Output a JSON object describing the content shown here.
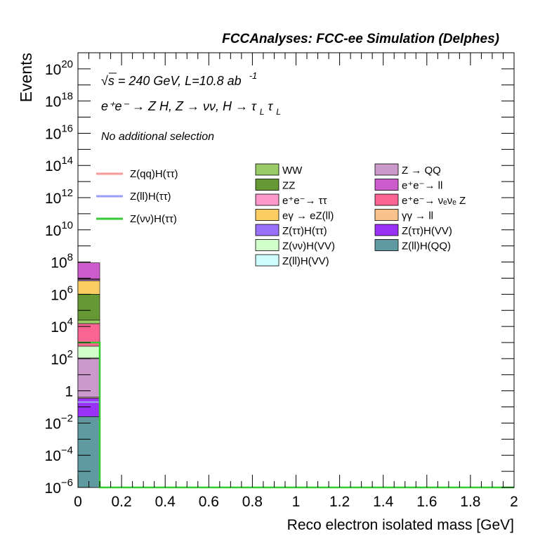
{
  "chart_data": {
    "type": "bar",
    "title": "FCCAnalyses: FCC-ee Simulation (Delphes)",
    "xlabel": "Reco electron isolated mass [GeV]",
    "ylabel": "Events",
    "xlim": [
      0,
      2
    ],
    "ylim": [
      1e-06,
      1e+21
    ],
    "yscale": "log",
    "grid": false,
    "x_ticks": [
      "0",
      "0.2",
      "0.4",
      "0.6",
      "0.8",
      "1",
      "1.2",
      "1.4",
      "1.6",
      "1.8",
      "2"
    ],
    "y_ticks": [
      {
        "base": "10",
        "exp": "−6",
        "value": 1e-06
      },
      {
        "base": "10",
        "exp": "−4",
        "value": 0.0001
      },
      {
        "base": "10",
        "exp": "−2",
        "value": 0.01
      },
      {
        "base": "1",
        "exp": "",
        "value": 1
      },
      {
        "base": "10",
        "exp": "2",
        "value": 100.0
      },
      {
        "base": "10",
        "exp": "4",
        "value": 10000.0
      },
      {
        "base": "10",
        "exp": "6",
        "value": 1000000.0
      },
      {
        "base": "10",
        "exp": "8",
        "value": 100000000.0
      },
      {
        "base": "10",
        "exp": "10",
        "value": 10000000000.0
      },
      {
        "base": "10",
        "exp": "12",
        "value": 1000000000000.0
      },
      {
        "base": "10",
        "exp": "14",
        "value": 100000000000000.0
      },
      {
        "base": "10",
        "exp": "16",
        "value": 1e+16
      },
      {
        "base": "10",
        "exp": "18",
        "value": 1e+18
      },
      {
        "base": "10",
        "exp": "20",
        "value": 1e+20
      }
    ],
    "annotations": {
      "energy": "√s = 240 GeV, L=10.8 ab",
      "energy_sup": "-1",
      "process": "e⁺e⁻ → Z H, Z → νν, H → τ",
      "process_sub1": "L",
      "process_tau": "τ",
      "process_sub2": "L",
      "selection": "No additional selection"
    },
    "bin": [
      0,
      0.1
    ],
    "stack": [
      {
        "name": "Z(ll)H(QQ)",
        "color": "#5f9aa0",
        "top": 0.025
      },
      {
        "name": "Z(ττ)H(VV)",
        "color": "#9932f5",
        "top": 0.35
      },
      {
        "name": "γγ → ll",
        "color": "#f8c28d",
        "top": 0.4
      },
      {
        "name": "Z → QQ",
        "color": "#cc99cc",
        "top": 100
      },
      {
        "name": "Z(ll)H(VV)",
        "color": "#cdfdfd",
        "top": 110
      },
      {
        "name": "Z(νν)H(VV)",
        "color": "#d2fecc",
        "top": 600
      },
      {
        "name": "e⁺e⁻→ ν_e ν_e Z",
        "color": "#fc6493",
        "top": 15000
      },
      {
        "name": "WW",
        "color": "#99cc66",
        "top": 25000
      },
      {
        "name": "ZZ",
        "color": "#669933",
        "top": 1000000
      },
      {
        "name": "eγ → eZ(ll)",
        "color": "#fccd63",
        "top": 7000000
      },
      {
        "name": "Z(ττ)H(ττ)",
        "color": "#9970fa",
        "top": 8000000
      },
      {
        "name": "e⁺e⁻→ ττ",
        "color": "#fc98ca",
        "top": 9000000
      },
      {
        "name": "e⁺e⁻→ ll",
        "color": "#cc5ccc",
        "top": 90000000
      }
    ],
    "lines": [
      {
        "name": "Z(qq)H(ττ)",
        "color": "#f59999",
        "value": 0.2
      },
      {
        "name": "Z(ll)H(ττ)",
        "color": "#999ff8",
        "value": 0.2
      },
      {
        "name": "Z(νν)H(ττ)",
        "color": "#33cc33",
        "value": 1000
      }
    ],
    "legend_lines": [
      {
        "label": "Z(qq)H(ττ)",
        "color": "#f59999"
      },
      {
        "label": "Z(ll)H(ττ)",
        "color": "#999ff8"
      },
      {
        "label": "Z(νν)H(ττ)",
        "color": "#33cc33"
      }
    ],
    "legend_col1": [
      {
        "label": "WW",
        "color": "#99cc66"
      },
      {
        "label": "ZZ",
        "color": "#669933"
      },
      {
        "label": "e⁺e⁻→ ττ",
        "color": "#fc98ca"
      },
      {
        "label": "eγ → eZ(ll)",
        "color": "#fccd63"
      },
      {
        "label": "Z(ττ)H(ττ)",
        "color": "#9970fa"
      },
      {
        "label": "Z(νν)H(VV)",
        "color": "#d2fecc"
      },
      {
        "label": "Z(ll)H(VV)",
        "color": "#cdfdfd"
      }
    ],
    "legend_col2": [
      {
        "label": "Z → QQ",
        "color": "#cc99cc"
      },
      {
        "label": "e⁺e⁻→ ll",
        "color": "#cc5ccc"
      },
      {
        "label": "e⁺e⁻→ νₑνₑ Z",
        "color": "#fc6493"
      },
      {
        "label": "γγ → ll",
        "color": "#f8c28d"
      },
      {
        "label": "Z(ττ)H(VV)",
        "color": "#9932f5"
      },
      {
        "label": "Z(ll)H(QQ)",
        "color": "#5f9aa0"
      }
    ]
  }
}
